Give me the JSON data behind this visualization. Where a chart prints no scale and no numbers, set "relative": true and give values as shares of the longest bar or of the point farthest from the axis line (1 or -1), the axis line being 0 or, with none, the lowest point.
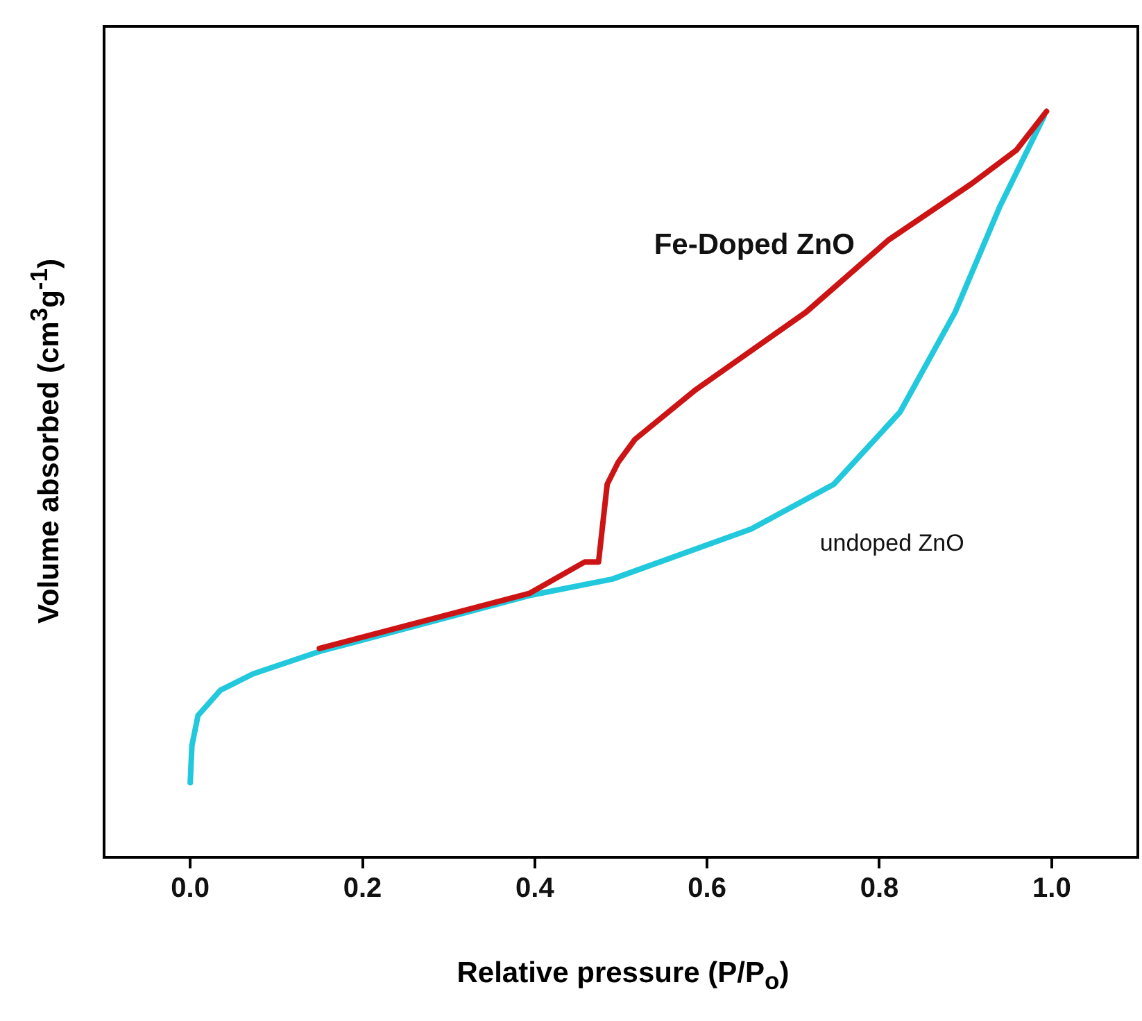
{
  "chart_data": {
    "type": "line",
    "xlabel": "Relative pressure (P/P$_{o}$)",
    "ylabel": "Volume absorbed (cm$^{3}$g$^{-1}$)",
    "relative": true,
    "xlim": [
      -0.1,
      1.1
    ],
    "xticks": [
      {
        "value": 0,
        "label": "0.0"
      },
      0.2,
      0.4,
      0.6,
      0.8,
      {
        "value": 1,
        "label": "1.0"
      }
    ],
    "tick_labels": "x",
    "grid": false,
    "legend": false,
    "marker": "none",
    "line_style": "solid",
    "series": [
      {
        "name": "Fe-Doped ZnO",
        "color": "#cc1414",
        "x": [
          0.15,
          0.394,
          0.458,
          0.474,
          0.484,
          0.497,
          0.516,
          0.587,
          0.715,
          0.811,
          0.907,
          0.959,
          0.994
        ],
        "values": [
          0.28,
          0.354,
          0.396,
          0.396,
          0.5,
          0.53,
          0.56,
          0.627,
          0.731,
          0.828,
          0.903,
          0.948,
          1.0
        ]
      },
      {
        "name": "undoped ZnO",
        "color": "#22c8dc",
        "x": [
          0.0,
          0.002,
          0.009,
          0.035,
          0.073,
          0.15,
          0.394,
          0.49,
          0.651,
          0.747,
          0.824,
          0.888,
          0.94,
          0.991
        ],
        "values": [
          0.1,
          0.15,
          0.19,
          0.224,
          0.246,
          0.276,
          0.351,
          0.373,
          0.44,
          0.5,
          0.597,
          0.731,
          0.873,
          0.993
        ]
      }
    ]
  }
}
